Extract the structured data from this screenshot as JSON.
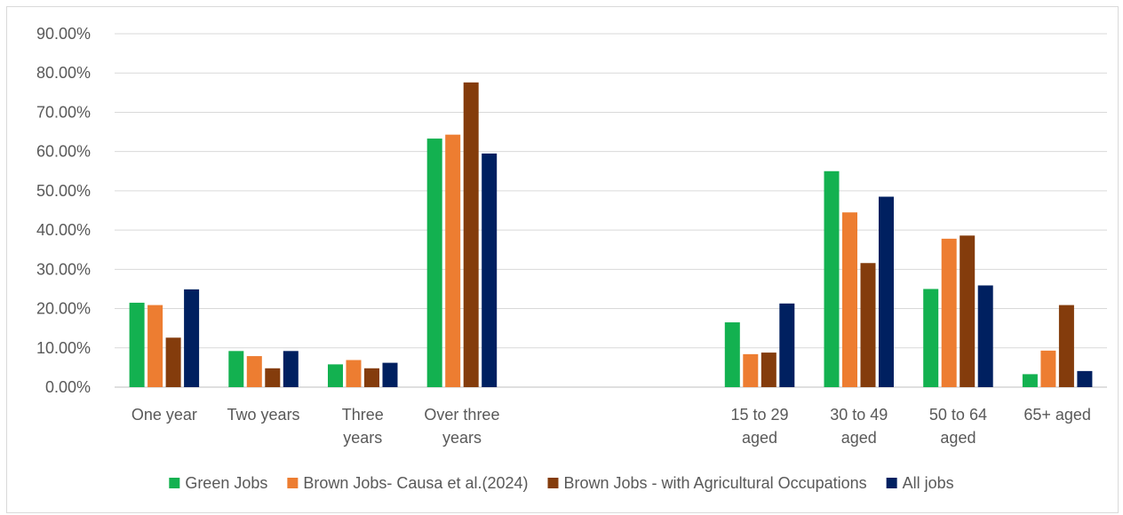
{
  "chart_data": {
    "type": "bar",
    "categories": [
      [
        "One year"
      ],
      [
        "Two years"
      ],
      [
        "Three",
        "years"
      ],
      [
        "Over three",
        "years"
      ],
      [],
      [],
      [
        "15 to 29",
        "aged"
      ],
      [
        "30 to 49",
        "aged"
      ],
      [
        "50 to 64",
        "aged"
      ],
      [
        "65+ aged"
      ]
    ],
    "series": [
      {
        "name": "Green Jobs",
        "color": "#13b150",
        "values": [
          21.5,
          9.2,
          5.8,
          63.3,
          null,
          null,
          16.5,
          55.0,
          25.0,
          3.3
        ]
      },
      {
        "name": "Brown Jobs- Causa et al.(2024)",
        "color": "#ed7d31",
        "values": [
          20.9,
          7.9,
          6.9,
          64.3,
          null,
          null,
          8.4,
          44.5,
          37.8,
          9.3
        ]
      },
      {
        "name": "Brown Jobs - with Agricultural Occupations",
        "color": "#843c0c",
        "values": [
          12.6,
          4.8,
          4.8,
          77.6,
          null,
          null,
          8.8,
          31.6,
          38.6,
          20.9
        ]
      },
      {
        "name": "All jobs",
        "color": "#002060",
        "values": [
          24.9,
          9.2,
          6.2,
          59.5,
          null,
          null,
          21.3,
          48.5,
          25.9,
          4.1
        ]
      }
    ],
    "yticks": [
      "0.00%",
      "10.00%",
      "20.00%",
      "30.00%",
      "40.00%",
      "50.00%",
      "60.00%",
      "70.00%",
      "80.00%",
      "90.00%"
    ],
    "ylim": [
      0,
      90
    ],
    "title": "",
    "xlabel": "",
    "ylabel": "",
    "grid": true,
    "legend_position": "bottom"
  }
}
